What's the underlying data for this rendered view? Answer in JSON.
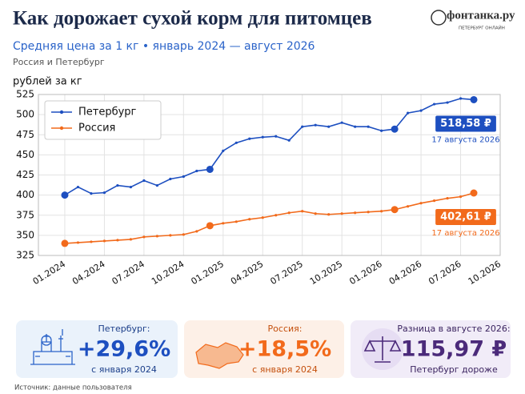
{
  "chart_data": {
    "type": "line",
    "title": "Как дорожает сухой корм для питомцев",
    "subtitle": "Средняя цена за 1 кг • январь 2024 — август 2026",
    "note": "Россия и Петербург",
    "y_label": "рублей за кг",
    "x": [
      "01.2024",
      "02.2024",
      "03.2024",
      "04.2024",
      "05.2024",
      "06.2024",
      "07.2024",
      "08.2024",
      "09.2024",
      "10.2024",
      "11.2024",
      "12.2024",
      "01.2025",
      "02.2025",
      "03.2025",
      "04.2025",
      "05.2025",
      "06.2025",
      "07.2025",
      "08.2025",
      "09.2025",
      "10.2025",
      "11.2025",
      "12.2025",
      "01.2026",
      "02.2026",
      "03.2026",
      "04.2026",
      "05.2026",
      "06.2026",
      "07.2026",
      "08.2026"
    ],
    "xlim": [
      "11.2023",
      "10.2026"
    ],
    "xticks": [
      "01.2024",
      "04.2024",
      "07.2024",
      "10.2024",
      "01.2025",
      "04.2025",
      "07.2025",
      "10.2025",
      "01.2026",
      "04.2026",
      "07.2026",
      "10.2026"
    ],
    "ylim": [
      325,
      525
    ],
    "yticks": [
      325,
      350,
      375,
      400,
      425,
      450,
      475,
      500,
      525
    ],
    "grid": true,
    "legend": "upper left",
    "series": [
      {
        "name": "Петербург",
        "color": "#1d4fc0",
        "values": [
          400,
          410,
          402,
          403,
          412,
          410,
          418,
          412,
          420,
          423,
          430,
          432,
          455,
          465,
          470,
          472,
          473,
          468,
          485,
          487,
          485,
          490,
          485,
          485,
          480,
          482,
          502,
          505,
          513,
          515,
          520,
          518.58
        ],
        "value_labels": [
          null,
          null,
          null,
          null,
          null,
          null,
          null,
          null,
          null,
          null,
          null,
          null,
          null,
          null,
          null,
          null,
          null,
          null,
          null,
          null,
          null,
          null,
          null,
          null,
          null,
          null,
          null,
          null,
          null,
          null,
          null,
          "518,58 ₽"
        ],
        "end_date_label": "17 августа 2026",
        "highlight": [
          0,
          11,
          25,
          31
        ]
      },
      {
        "name": "Россия",
        "color": "#f26a1b",
        "values": [
          340,
          341,
          342,
          343,
          344,
          345,
          348,
          349,
          350,
          351,
          355,
          362,
          365,
          367,
          370,
          372,
          375,
          378,
          380,
          377,
          376,
          377,
          378,
          379,
          380,
          382,
          386,
          390,
          393,
          396,
          398,
          402.61
        ],
        "value_labels": [
          null,
          null,
          null,
          null,
          null,
          null,
          null,
          null,
          null,
          null,
          null,
          null,
          null,
          null,
          null,
          null,
          null,
          null,
          null,
          null,
          null,
          null,
          null,
          null,
          null,
          null,
          null,
          null,
          null,
          null,
          null,
          "402,61 ₽"
        ],
        "end_date_label": "17 августа 2026",
        "highlight": [
          0,
          11,
          25,
          31
        ]
      }
    ]
  },
  "logo": {
    "name": "фонтанка.ру",
    "tagline": "ПЕТЕРБУРГ ОНЛАЙН"
  },
  "cards": [
    {
      "label": "Петербург:",
      "value": "+29,6%",
      "note": "с января 2024"
    },
    {
      "label": "Россия:",
      "value": "+18,5%",
      "note": "с января 2024"
    },
    {
      "label": "Разница в августе 2026:",
      "value": "115,97 ₽",
      "note": "Петербург дороже"
    }
  ],
  "source": "Источник: данные пользователя"
}
